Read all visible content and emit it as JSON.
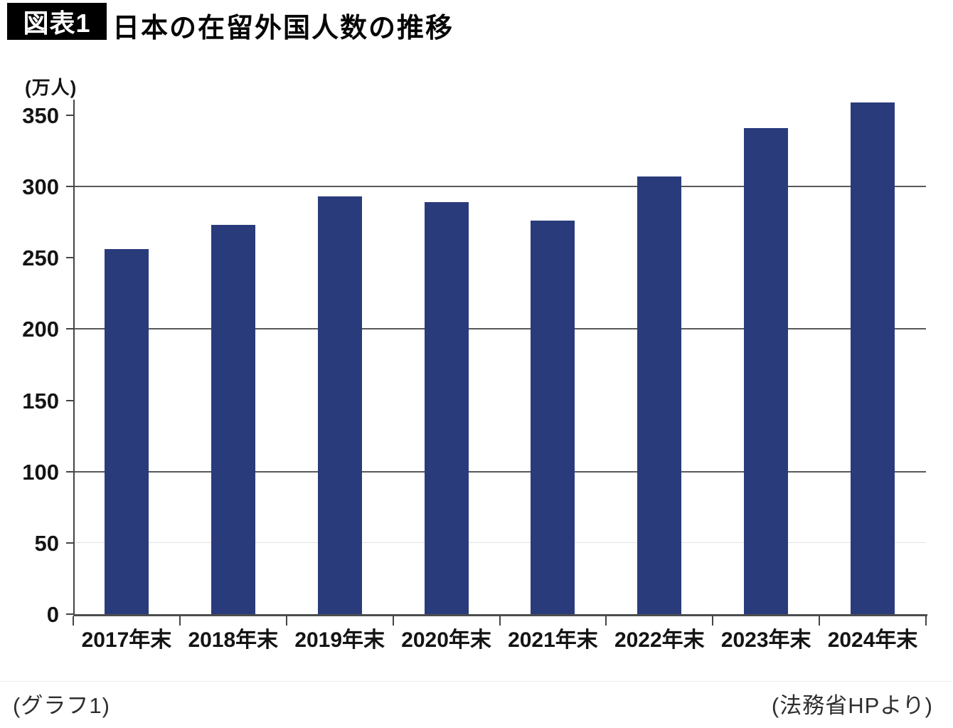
{
  "header": {
    "badge": "図表1",
    "title": "日本の在留外国人数の推移"
  },
  "chart_data": {
    "type": "bar",
    "title": "日本の在留外国人数の推移",
    "unit_label": "(万人)",
    "xlabel": "",
    "ylabel": "万人",
    "categories": [
      "2017年末",
      "2018年末",
      "2019年末",
      "2020年末",
      "2021年末",
      "2022年末",
      "2023年末",
      "2024年末"
    ],
    "values": [
      256,
      273,
      293,
      289,
      276,
      307,
      341,
      359
    ],
    "ylim": [
      0,
      350
    ],
    "yticks": [
      0,
      50,
      100,
      150,
      200,
      250,
      300,
      350
    ],
    "gridlines_major": [
      100,
      200,
      300
    ],
    "gridlines_faint": [
      50
    ],
    "legend": "none",
    "bar_color": "#2a3b7c",
    "grid_color": "#58595b",
    "axis_color": "#454547"
  },
  "footer": {
    "left": "(グラフ1)",
    "right": "(法務省HPより)"
  }
}
